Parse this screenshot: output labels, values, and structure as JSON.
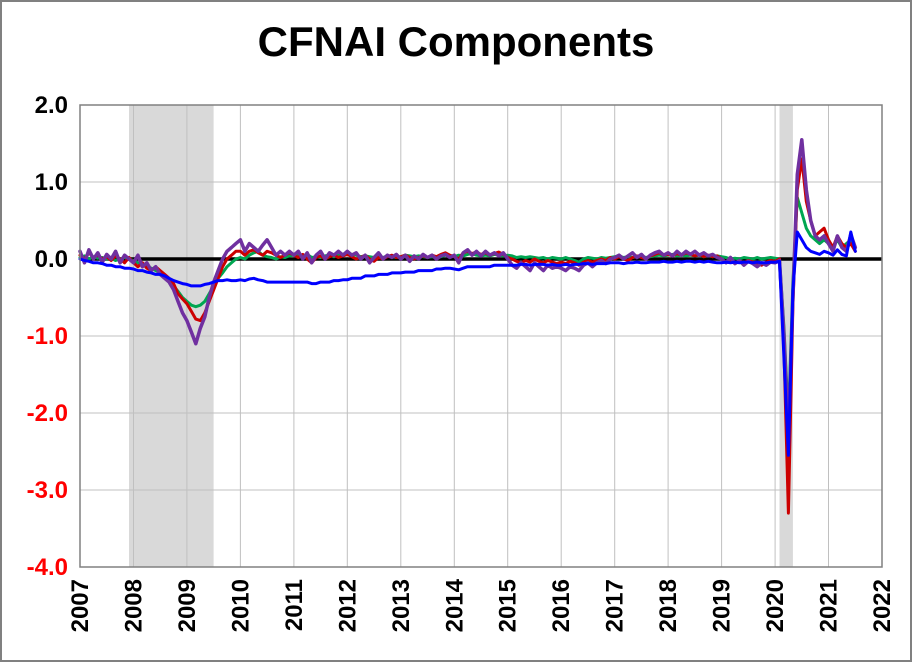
{
  "chart_data": {
    "type": "line",
    "title": "CFNAI Components",
    "x_axis": {
      "min": 2007,
      "max": 2022,
      "tick_step": 1,
      "tick_labels": [
        "2007",
        "2008",
        "2009",
        "2010",
        "2011",
        "2012",
        "2013",
        "2014",
        "2015",
        "2016",
        "2017",
        "2018",
        "2019",
        "2020",
        "2021",
        "2022"
      ],
      "label_rotation": -90
    },
    "y_axis": {
      "min": -4.0,
      "max": 2.0,
      "tick_step": 1.0,
      "tick_labels": [
        "2.0",
        "1.0",
        "0.0",
        "-1.0",
        "-2.0",
        "-3.0",
        "-4.0"
      ],
      "positive_label_color": "#000000",
      "negative_label_color": "#FF0000"
    },
    "grid": true,
    "grid_color": "#C0C0C0",
    "zero_line_color": "#000000",
    "band_color": "#D9D9D9",
    "recession_bands": [
      {
        "start": 2007.917,
        "end": 2009.5
      },
      {
        "start": 2020.083,
        "end": 2020.333
      }
    ],
    "x_start": 2007.0,
    "x_step": "monthly",
    "series": [
      {
        "name": "green",
        "color": "#00A651",
        "width": 3,
        "values": [
          0.02,
          0.04,
          0.0,
          0.03,
          0.01,
          0.02,
          0.0,
          0.01,
          -0.02,
          0.0,
          0.02,
          0.0,
          -0.02,
          -0.05,
          -0.08,
          -0.1,
          -0.12,
          -0.15,
          -0.18,
          -0.22,
          -0.28,
          -0.35,
          -0.42,
          -0.5,
          -0.55,
          -0.6,
          -0.62,
          -0.6,
          -0.55,
          -0.45,
          -0.35,
          -0.25,
          -0.18,
          -0.1,
          -0.05,
          0.0,
          0.02,
          0.0,
          0.05,
          0.08,
          0.1,
          0.05,
          0.03,
          0.02,
          0.0,
          0.03,
          0.02,
          0.04,
          0.05,
          0.06,
          0.04,
          0.06,
          0.02,
          0.03,
          0.02,
          0.04,
          0.05,
          0.03,
          0.05,
          0.06,
          0.08,
          0.06,
          0.05,
          0.03,
          0.04,
          0.03,
          0.02,
          0.03,
          0.02,
          0.04,
          0.03,
          0.02,
          0.03,
          0.05,
          0.04,
          0.03,
          0.04,
          0.03,
          0.02,
          0.03,
          0.02,
          0.03,
          0.05,
          0.04,
          0.03,
          0.05,
          0.04,
          0.06,
          0.07,
          0.05,
          0.04,
          0.05,
          0.04,
          0.06,
          0.05,
          0.04,
          0.05,
          0.04,
          0.02,
          0.03,
          0.02,
          0.03,
          0.02,
          0.01,
          0.02,
          0.0,
          0.02,
          0.01,
          0.0,
          0.02,
          0.0,
          -0.02,
          -0.04,
          0.0,
          0.02,
          0.01,
          0.0,
          0.02,
          0.01,
          0.02,
          0.03,
          0.04,
          0.02,
          0.03,
          0.02,
          0.03,
          0.04,
          0.02,
          0.03,
          0.04,
          0.05,
          0.04,
          0.05,
          0.06,
          0.04,
          0.05,
          0.04,
          0.05,
          0.04,
          0.05,
          0.03,
          0.04,
          0.03,
          0.04,
          0.03,
          0.02,
          0.0,
          0.01,
          0.0,
          0.02,
          0.01,
          0.0,
          0.02,
          0.0,
          0.01,
          0.02,
          0.01,
          0.0,
          -0.9,
          -2.1,
          -0.3,
          0.8,
          0.6,
          0.4,
          0.3,
          0.25,
          0.2,
          0.25,
          0.2,
          0.15,
          0.25,
          0.15,
          0.2,
          0.25,
          0.15
        ]
      },
      {
        "name": "red",
        "color": "#CC0000",
        "width": 3,
        "values": [
          0.05,
          0.0,
          0.08,
          0.02,
          0.05,
          0.0,
          0.03,
          -0.02,
          0.04,
          0.0,
          -0.05,
          0.02,
          -0.05,
          -0.1,
          -0.05,
          -0.12,
          -0.15,
          -0.1,
          -0.15,
          -0.2,
          -0.25,
          -0.32,
          -0.45,
          -0.52,
          -0.58,
          -0.68,
          -0.78,
          -0.8,
          -0.7,
          -0.55,
          -0.4,
          -0.25,
          -0.1,
          0.0,
          0.05,
          0.1,
          0.1,
          0.05,
          0.1,
          0.12,
          0.08,
          0.05,
          0.1,
          0.08,
          0.05,
          0.02,
          0.05,
          0.08,
          0.05,
          0.02,
          0.06,
          0.0,
          -0.05,
          0.02,
          0.04,
          0.0,
          0.03,
          0.05,
          0.02,
          0.04,
          0.06,
          0.03,
          0.0,
          0.02,
          0.05,
          0.0,
          -0.03,
          0.02,
          0.0,
          0.03,
          0.05,
          0.02,
          0.03,
          0.05,
          0.02,
          0.0,
          0.02,
          0.04,
          0.02,
          0.05,
          0.03,
          0.06,
          0.08,
          0.05,
          0.03,
          0.0,
          0.08,
          0.1,
          0.07,
          0.09,
          0.06,
          0.08,
          0.05,
          0.07,
          0.09,
          0.06,
          0.02,
          0.0,
          -0.03,
          -0.05,
          -0.02,
          -0.04,
          0.0,
          -0.03,
          -0.05,
          -0.02,
          -0.04,
          -0.06,
          -0.04,
          -0.06,
          -0.03,
          -0.05,
          -0.08,
          -0.04,
          -0.02,
          -0.04,
          -0.02,
          0.0,
          -0.02,
          0.02,
          0.0,
          0.03,
          0.0,
          -0.02,
          0.02,
          0.04,
          0.02,
          0.0,
          0.04,
          0.06,
          0.08,
          0.05,
          0.06,
          0.04,
          0.07,
          0.05,
          0.08,
          0.06,
          0.04,
          0.06,
          0.03,
          0.05,
          0.03,
          0.04,
          0.0,
          -0.05,
          -0.02,
          -0.06,
          -0.03,
          -0.05,
          -0.02,
          -0.04,
          -0.06,
          -0.08,
          -0.04,
          -0.02,
          -0.03,
          0.0,
          -1.2,
          -3.3,
          -0.6,
          0.9,
          1.3,
          0.75,
          0.5,
          0.3,
          0.35,
          0.4,
          0.25,
          0.15,
          0.3,
          0.2,
          0.15,
          0.2,
          0.1
        ]
      },
      {
        "name": "purple",
        "color": "#7030A0",
        "width": 3.5,
        "values": [
          0.1,
          -0.05,
          0.12,
          0.0,
          0.08,
          -0.04,
          0.06,
          0.0,
          0.1,
          -0.05,
          0.05,
          0.0,
          -0.05,
          0.05,
          -0.1,
          -0.05,
          -0.15,
          -0.1,
          -0.2,
          -0.25,
          -0.3,
          -0.4,
          -0.55,
          -0.7,
          -0.8,
          -0.95,
          -1.1,
          -0.9,
          -0.75,
          -0.5,
          -0.3,
          -0.15,
          0.0,
          0.1,
          0.15,
          0.2,
          0.25,
          0.1,
          0.2,
          0.15,
          0.1,
          0.18,
          0.25,
          0.15,
          0.05,
          0.1,
          0.05,
          0.1,
          0.05,
          0.1,
          0.0,
          0.08,
          -0.05,
          0.05,
          0.1,
          0.0,
          0.08,
          0.05,
          0.1,
          0.05,
          0.1,
          0.05,
          0.08,
          0.0,
          0.05,
          -0.05,
          0.02,
          0.08,
          0.0,
          0.05,
          0.02,
          0.06,
          0.0,
          0.05,
          -0.03,
          0.04,
          0.0,
          0.06,
          0.02,
          0.05,
          0.0,
          0.04,
          0.06,
          0.02,
          0.05,
          -0.05,
          0.08,
          0.12,
          0.05,
          0.1,
          0.04,
          0.1,
          0.05,
          0.08,
          0.04,
          0.08,
          0.0,
          -0.08,
          -0.12,
          -0.05,
          -0.1,
          -0.15,
          -0.05,
          -0.1,
          -0.15,
          -0.08,
          -0.12,
          -0.1,
          -0.12,
          -0.15,
          -0.1,
          -0.12,
          -0.15,
          -0.08,
          -0.05,
          -0.1,
          -0.05,
          -0.02,
          -0.06,
          0.0,
          0.02,
          0.05,
          0.0,
          0.04,
          0.08,
          0.02,
          0.06,
          0.0,
          0.05,
          0.08,
          0.1,
          0.05,
          0.08,
          0.04,
          0.1,
          0.05,
          0.1,
          0.06,
          0.1,
          0.05,
          0.08,
          0.04,
          0.06,
          0.02,
          0.0,
          -0.05,
          0.02,
          -0.06,
          -0.02,
          -0.08,
          -0.03,
          -0.06,
          -0.1,
          -0.05,
          -0.08,
          -0.04,
          -0.05,
          -0.02,
          -1.0,
          -2.3,
          -0.5,
          1.1,
          1.55,
          0.9,
          0.5,
          0.3,
          0.25,
          0.3,
          0.2,
          0.1,
          0.3,
          0.15,
          0.1,
          0.32,
          0.15
        ]
      },
      {
        "name": "blue",
        "color": "#0000FF",
        "width": 3,
        "values": [
          0.0,
          -0.02,
          -0.03,
          -0.05,
          -0.05,
          -0.06,
          -0.08,
          -0.08,
          -0.1,
          -0.1,
          -0.12,
          -0.12,
          -0.13,
          -0.15,
          -0.15,
          -0.17,
          -0.18,
          -0.2,
          -0.2,
          -0.22,
          -0.25,
          -0.28,
          -0.3,
          -0.32,
          -0.33,
          -0.35,
          -0.35,
          -0.35,
          -0.33,
          -0.32,
          -0.3,
          -0.28,
          -0.28,
          -0.27,
          -0.28,
          -0.28,
          -0.27,
          -0.28,
          -0.26,
          -0.25,
          -0.27,
          -0.28,
          -0.3,
          -0.3,
          -0.3,
          -0.3,
          -0.3,
          -0.3,
          -0.3,
          -0.3,
          -0.3,
          -0.3,
          -0.32,
          -0.32,
          -0.3,
          -0.3,
          -0.3,
          -0.28,
          -0.28,
          -0.27,
          -0.27,
          -0.25,
          -0.25,
          -0.25,
          -0.22,
          -0.22,
          -0.22,
          -0.2,
          -0.2,
          -0.2,
          -0.18,
          -0.18,
          -0.18,
          -0.17,
          -0.17,
          -0.17,
          -0.15,
          -0.15,
          -0.15,
          -0.15,
          -0.13,
          -0.13,
          -0.12,
          -0.12,
          -0.13,
          -0.14,
          -0.12,
          -0.1,
          -0.1,
          -0.1,
          -0.1,
          -0.1,
          -0.1,
          -0.08,
          -0.08,
          -0.08,
          -0.08,
          -0.08,
          -0.08,
          -0.07,
          -0.07,
          -0.08,
          -0.07,
          -0.07,
          -0.07,
          -0.08,
          -0.07,
          -0.08,
          -0.08,
          -0.07,
          -0.08,
          -0.07,
          -0.07,
          -0.06,
          -0.06,
          -0.07,
          -0.06,
          -0.06,
          -0.06,
          -0.05,
          -0.05,
          -0.05,
          -0.06,
          -0.05,
          -0.05,
          -0.04,
          -0.05,
          -0.05,
          -0.04,
          -0.04,
          -0.04,
          -0.03,
          -0.04,
          -0.04,
          -0.03,
          -0.04,
          -0.03,
          -0.03,
          -0.04,
          -0.03,
          -0.04,
          -0.03,
          -0.04,
          -0.05,
          -0.05,
          -0.04,
          -0.05,
          -0.04,
          -0.05,
          -0.04,
          -0.04,
          -0.05,
          -0.04,
          -0.05,
          -0.05,
          -0.04,
          -0.04,
          -0.03,
          -1.3,
          -2.55,
          -0.4,
          0.35,
          0.25,
          0.15,
          0.1,
          0.08,
          0.06,
          0.1,
          0.08,
          0.05,
          0.12,
          0.06,
          0.04,
          0.35,
          0.1
        ]
      }
    ]
  }
}
